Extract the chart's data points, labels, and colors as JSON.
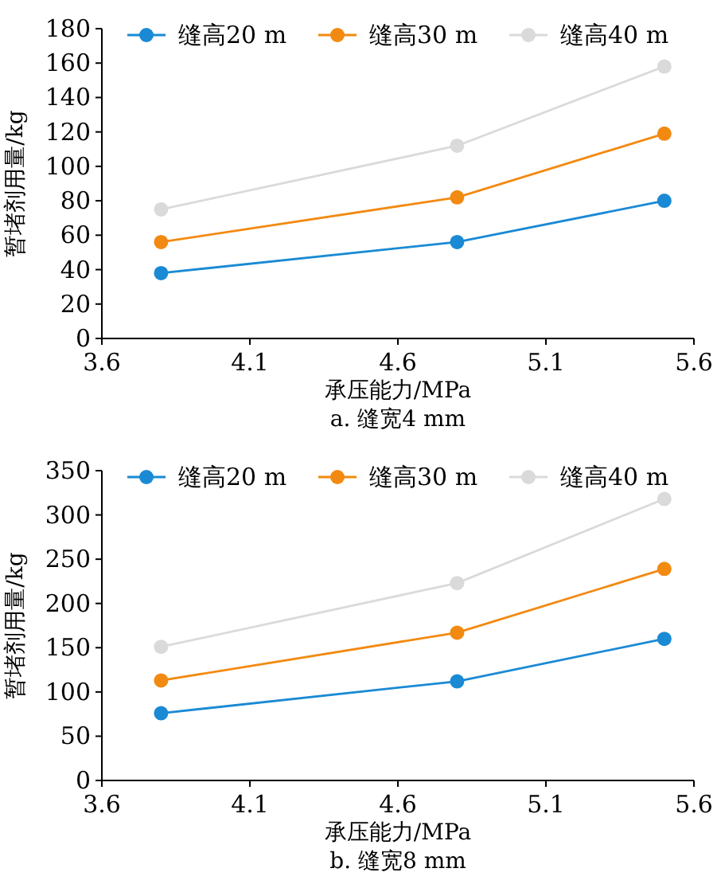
{
  "chart_data": [
    {
      "type": "line",
      "title": "a. 缝宽4 mm",
      "xlabel": "承压能力/MPa",
      "ylabel": "暂堵剂用量/kg",
      "x": [
        3.8,
        4.8,
        5.5
      ],
      "xlim": [
        3.6,
        5.6
      ],
      "xticks": [
        3.6,
        4.1,
        4.6,
        5.1,
        5.6
      ],
      "ylim": [
        0,
        180
      ],
      "yticks": [
        0,
        20,
        40,
        60,
        80,
        100,
        120,
        140,
        160,
        180
      ],
      "marker": "circle",
      "legend": "top",
      "series": [
        {
          "name": "缝高20 m",
          "color": "#1a8ad4",
          "values": [
            38,
            56,
            80
          ]
        },
        {
          "name": "缝高30 m",
          "color": "#f28a12",
          "values": [
            56,
            82,
            119
          ]
        },
        {
          "name": "缝高40 m",
          "color": "#dadada",
          "values": [
            75,
            112,
            158
          ]
        }
      ]
    },
    {
      "type": "line",
      "title": "b. 缝宽8 mm",
      "xlabel": "承压能力/MPa",
      "ylabel": "暂堵剂用量/kg",
      "x": [
        3.8,
        4.8,
        5.5
      ],
      "xlim": [
        3.6,
        5.6
      ],
      "xticks": [
        3.6,
        4.1,
        4.6,
        5.1,
        5.6
      ],
      "ylim": [
        0,
        350
      ],
      "yticks": [
        0,
        50,
        100,
        150,
        200,
        250,
        300,
        350
      ],
      "marker": "circle",
      "legend": "top",
      "series": [
        {
          "name": "缝高20 m",
          "color": "#1a8ad4",
          "values": [
            76,
            112,
            160
          ]
        },
        {
          "name": "缝高30 m",
          "color": "#f28a12",
          "values": [
            113,
            167,
            239
          ]
        },
        {
          "name": "缝高40 m",
          "color": "#dadada",
          "values": [
            151,
            223,
            318
          ]
        }
      ]
    }
  ]
}
